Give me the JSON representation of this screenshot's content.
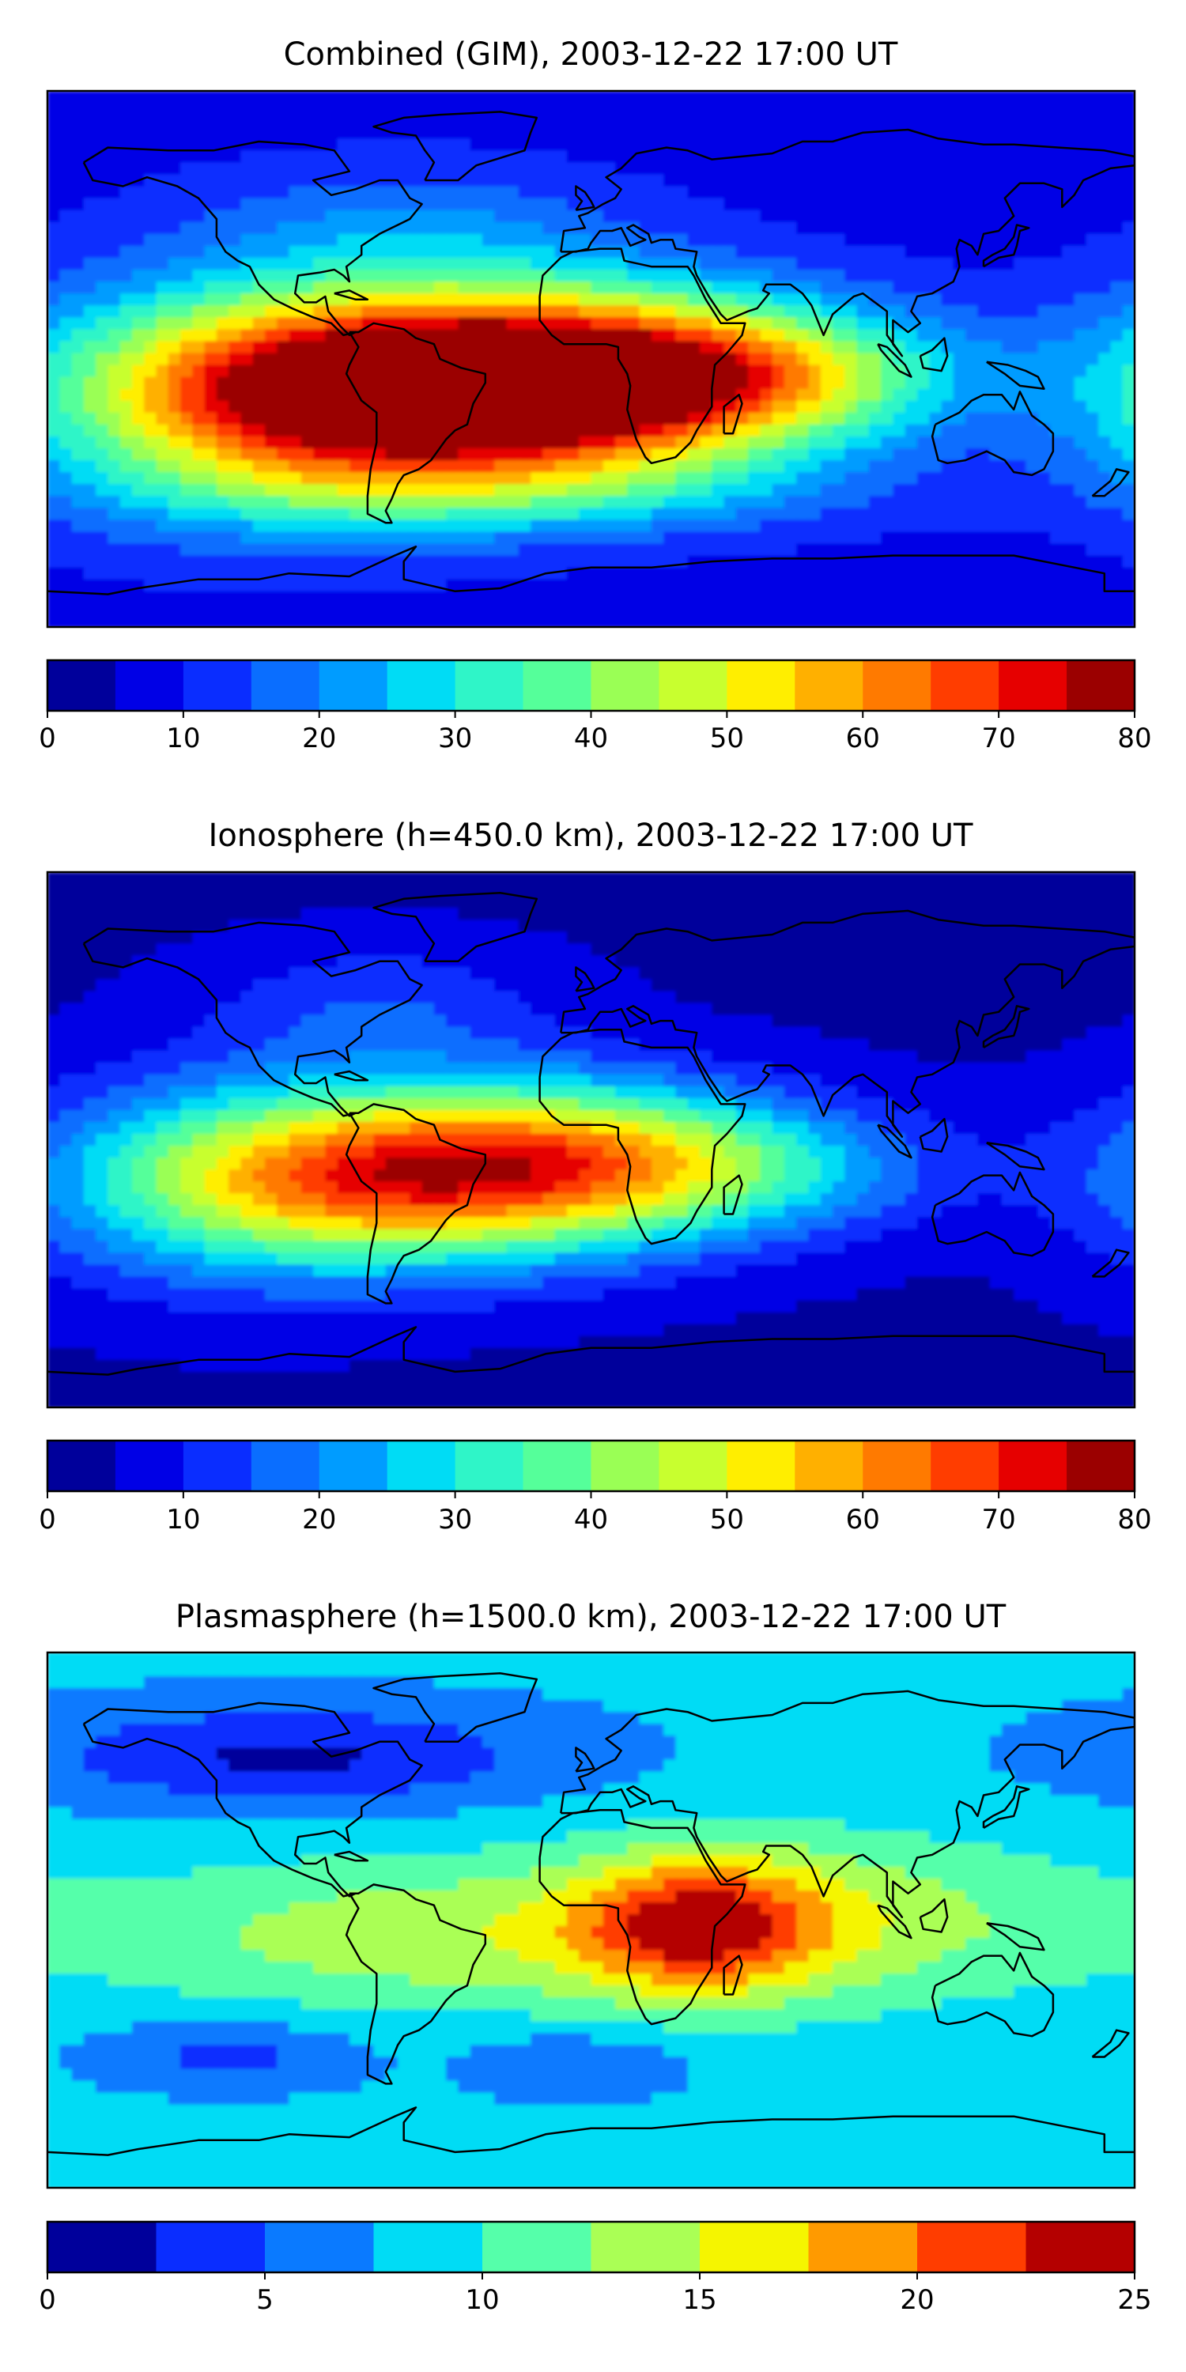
{
  "chart_data": [
    {
      "type": "heatmap",
      "title": "Combined (GIM), 2003-12-22 17:00 UT",
      "xlabel": "",
      "ylabel": "",
      "projection": "world map, longitude -180 to 180, latitude -90 to 90",
      "lon_range": [
        -180,
        180
      ],
      "lat_range": [
        -90,
        90
      ],
      "colorbar": {
        "levels": [
          0,
          5,
          10,
          15,
          20,
          25,
          30,
          35,
          40,
          45,
          50,
          55,
          60,
          65,
          70,
          75,
          80
        ],
        "tick_labels": [
          "0",
          "10",
          "20",
          "30",
          "40",
          "50",
          "60",
          "70",
          "80"
        ],
        "colors": [
          "#00009b",
          "#0000e6",
          "#0a2dff",
          "#0a6eff",
          "#009cff",
          "#00dcf5",
          "#2ff5c8",
          "#55ff9a",
          "#9aff55",
          "#c8ff2f",
          "#ffee00",
          "#ffb000",
          "#ff7a00",
          "#ff3d00",
          "#e60000",
          "#9b0000"
        ]
      },
      "background_value": 8,
      "features": [
        {
          "lon": -55,
          "lat": -10,
          "value": 70,
          "spread_lon": 70,
          "spread_lat": 22
        },
        {
          "lon": 5,
          "lat": -6,
          "value": 38,
          "spread_lon": 55,
          "spread_lat": 20
        },
        {
          "lon": -110,
          "lat": -15,
          "value": 22,
          "spread_lon": 55,
          "spread_lat": 28
        },
        {
          "lon": 65,
          "lat": -5,
          "value": 20,
          "spread_lon": 45,
          "spread_lat": 15
        },
        {
          "lon": -60,
          "lat": 45,
          "value": 10,
          "spread_lon": 50,
          "spread_lat": 15
        },
        {
          "lon": -30,
          "lat": -45,
          "value": 12,
          "spread_lon": 80,
          "spread_lat": 10
        }
      ]
    },
    {
      "type": "heatmap",
      "title": "Ionosphere  (h=450.0 km), 2003-12-22 17:00 UT",
      "xlabel": "",
      "ylabel": "",
      "projection": "world map, longitude -180 to 180, latitude -90 to 90",
      "lon_range": [
        -180,
        180
      ],
      "lat_range": [
        -90,
        90
      ],
      "colorbar": {
        "levels": [
          0,
          5,
          10,
          15,
          20,
          25,
          30,
          35,
          40,
          45,
          50,
          55,
          60,
          65,
          70,
          75,
          80
        ],
        "tick_labels": [
          "0",
          "10",
          "20",
          "30",
          "40",
          "50",
          "60",
          "70",
          "80"
        ],
        "colors": [
          "#00009b",
          "#0000e6",
          "#0a2dff",
          "#0a6eff",
          "#009cff",
          "#00dcf5",
          "#2ff5c8",
          "#55ff9a",
          "#9aff55",
          "#c8ff2f",
          "#ffee00",
          "#ffb000",
          "#ff7a00",
          "#ff3d00",
          "#e60000",
          "#9b0000"
        ]
      },
      "background_value": 4,
      "features": [
        {
          "lon": -55,
          "lat": -12,
          "value": 52,
          "spread_lon": 65,
          "spread_lat": 20
        },
        {
          "lon": 0,
          "lat": -5,
          "value": 24,
          "spread_lon": 50,
          "spread_lat": 18
        },
        {
          "lon": -115,
          "lat": -15,
          "value": 18,
          "spread_lon": 50,
          "spread_lat": 25
        },
        {
          "lon": 60,
          "lat": -10,
          "value": 12,
          "spread_lon": 45,
          "spread_lat": 14
        },
        {
          "lon": -70,
          "lat": 45,
          "value": 10,
          "spread_lon": 40,
          "spread_lat": 15
        }
      ]
    },
    {
      "type": "heatmap",
      "title": "Plasmasphere (h=1500.0 km), 2003-12-22 17:00 UT",
      "xlabel": "",
      "ylabel": "",
      "projection": "world map, longitude -180 to 180, latitude -90 to 90",
      "lon_range": [
        -180,
        180
      ],
      "lat_range": [
        -90,
        90
      ],
      "colorbar": {
        "levels": [
          0,
          2.5,
          5,
          7.5,
          10,
          12.5,
          15,
          17.5,
          20,
          22.5,
          25
        ],
        "tick_labels": [
          "0",
          "5",
          "10",
          "15",
          "20",
          "25"
        ],
        "colors": [
          "#00009b",
          "#0a2dff",
          "#0a7aff",
          "#00dcf5",
          "#55ffaa",
          "#aaff55",
          "#f5f500",
          "#ff9a00",
          "#ff3d00",
          "#b40000"
        ]
      },
      "background_value": 8,
      "features": [
        {
          "lon": 35,
          "lat": -2,
          "value": 11,
          "spread_lon": 28,
          "spread_lat": 16
        },
        {
          "lon": 80,
          "lat": 0,
          "value": 6,
          "spread_lon": 60,
          "spread_lat": 20
        },
        {
          "lon": -60,
          "lat": -5,
          "value": 6,
          "spread_lon": 70,
          "spread_lat": 18
        },
        {
          "lon": -100,
          "lat": 55,
          "value": -6,
          "spread_lon": 60,
          "spread_lat": 12
        },
        {
          "lon": -120,
          "lat": -45,
          "value": -4,
          "spread_lon": 30,
          "spread_lat": 8
        },
        {
          "lon": -5,
          "lat": -48,
          "value": -3,
          "spread_lon": 25,
          "spread_lat": 8
        }
      ]
    }
  ]
}
